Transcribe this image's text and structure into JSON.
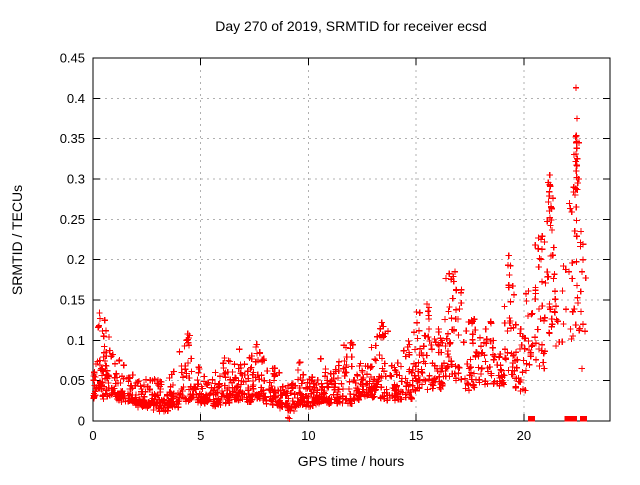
{
  "chart_data": {
    "type": "scatter",
    "title": "Day 270 of 2019, SRMTID for receiver ecsd",
    "xlabel": "GPS time / hours",
    "ylabel": "SRMTID / TECUs",
    "xlim": [
      0,
      24
    ],
    "ylim": [
      0,
      0.45
    ],
    "xticks": [
      0,
      5,
      10,
      15,
      20
    ],
    "xtick_labels": [
      "0",
      "5",
      "10",
      "15",
      "20"
    ],
    "yticks": [
      0,
      0.05,
      0.1,
      0.15,
      0.2,
      0.25,
      0.3,
      0.35,
      0.4,
      0.45
    ],
    "ytick_labels": [
      "0",
      "0.05",
      "0.1",
      "0.15",
      "0.2",
      "0.25",
      "0.3",
      "0.35",
      "0.4",
      "0.45"
    ],
    "grid": true,
    "legend": "none",
    "marker": "plus-cross",
    "marker_color": "#ff0000",
    "grid_color": "#b0b0b0",
    "axis_color": "#000000",
    "background": "#ffffff",
    "series_name": "SRMTID",
    "bands": [
      [
        0.0,
        0.25,
        18,
        0.03,
        0.08,
        2.2
      ],
      [
        0.2,
        0.8,
        26,
        0.04,
        0.135,
        1.6
      ],
      [
        0.25,
        1.0,
        30,
        0.03,
        0.08,
        2.2
      ],
      [
        1.0,
        1.5,
        34,
        0.028,
        0.075,
        2.2
      ],
      [
        1.5,
        2.0,
        34,
        0.025,
        0.065,
        2.2
      ],
      [
        2.0,
        2.5,
        34,
        0.02,
        0.06,
        2.2
      ],
      [
        2.5,
        3.0,
        34,
        0.018,
        0.055,
        2.2
      ],
      [
        3.0,
        3.5,
        34,
        0.015,
        0.052,
        2.2
      ],
      [
        3.5,
        4.0,
        34,
        0.02,
        0.06,
        2.2
      ],
      [
        4.0,
        4.5,
        30,
        0.025,
        0.105,
        2.0
      ],
      [
        4.5,
        5.0,
        30,
        0.028,
        0.085,
        2.2
      ],
      [
        5.0,
        5.5,
        34,
        0.025,
        0.06,
        2.2
      ],
      [
        5.5,
        6.0,
        34,
        0.022,
        0.065,
        2.2
      ],
      [
        6.0,
        6.5,
        34,
        0.025,
        0.08,
        2.2
      ],
      [
        6.5,
        7.0,
        34,
        0.028,
        0.09,
        2.2
      ],
      [
        7.0,
        7.5,
        34,
        0.025,
        0.09,
        2.2
      ],
      [
        7.5,
        8.0,
        34,
        0.028,
        0.095,
        2.2
      ],
      [
        8.0,
        8.5,
        34,
        0.025,
        0.07,
        2.2
      ],
      [
        8.5,
        9.0,
        34,
        0.02,
        0.06,
        2.2
      ],
      [
        9.0,
        9.5,
        34,
        0.015,
        0.055,
        2.2
      ],
      [
        9.5,
        10.0,
        34,
        0.02,
        0.075,
        2.2
      ],
      [
        10.0,
        10.5,
        34,
        0.02,
        0.06,
        2.2
      ],
      [
        10.5,
        11.0,
        34,
        0.025,
        0.08,
        2.2
      ],
      [
        11.0,
        11.5,
        34,
        0.025,
        0.07,
        2.2
      ],
      [
        11.5,
        12.2,
        38,
        0.025,
        0.095,
        2.2
      ],
      [
        12.2,
        12.7,
        34,
        0.03,
        0.075,
        2.2
      ],
      [
        12.7,
        13.1,
        28,
        0.03,
        0.09,
        2.0
      ],
      [
        13.1,
        13.7,
        38,
        0.03,
        0.12,
        1.8
      ],
      [
        13.7,
        14.3,
        34,
        0.028,
        0.08,
        2.2
      ],
      [
        14.3,
        15.0,
        38,
        0.03,
        0.11,
        1.7
      ],
      [
        15.0,
        15.7,
        40,
        0.04,
        0.145,
        1.5
      ],
      [
        15.7,
        16.3,
        38,
        0.04,
        0.12,
        1.5
      ],
      [
        16.3,
        17.2,
        45,
        0.05,
        0.185,
        1.4
      ],
      [
        17.2,
        18.0,
        40,
        0.04,
        0.14,
        1.5
      ],
      [
        18.0,
        18.6,
        28,
        0.045,
        0.13,
        1.6
      ],
      [
        18.6,
        19.1,
        24,
        0.045,
        0.095,
        1.8
      ],
      [
        19.1,
        19.6,
        30,
        0.05,
        0.2,
        1.3
      ],
      [
        19.6,
        20.1,
        24,
        0.04,
        0.12,
        1.6
      ],
      [
        20.1,
        20.45,
        16,
        0.05,
        0.16,
        1.4
      ],
      [
        20.5,
        21.0,
        30,
        0.07,
        0.23,
        1.3
      ],
      [
        21.0,
        21.45,
        32,
        0.1,
        0.3,
        1.2
      ],
      [
        21.45,
        22.1,
        13,
        0.08,
        0.22,
        1.5
      ],
      [
        22.1,
        22.6,
        32,
        0.1,
        0.37,
        1.1
      ],
      [
        22.6,
        22.9,
        9,
        0.06,
        0.24,
        1.5
      ]
    ],
    "peaks": [
      [
        0.3,
        0.134
      ],
      [
        0.33,
        0.127
      ],
      [
        0.55,
        0.125
      ],
      [
        0.28,
        0.118
      ],
      [
        0.6,
        0.112
      ],
      [
        0.5,
        0.105
      ],
      [
        4.4,
        0.108
      ],
      [
        4.35,
        0.1
      ],
      [
        4.45,
        0.094
      ],
      [
        7.6,
        0.095
      ],
      [
        12.0,
        0.097
      ],
      [
        11.95,
        0.09
      ],
      [
        13.4,
        0.122
      ],
      [
        13.35,
        0.114
      ],
      [
        13.45,
        0.107
      ],
      [
        14.9,
        0.11
      ],
      [
        15.5,
        0.145
      ],
      [
        15.55,
        0.136
      ],
      [
        16.8,
        0.185
      ],
      [
        16.75,
        0.173
      ],
      [
        16.85,
        0.163
      ],
      [
        16.7,
        0.152
      ],
      [
        19.3,
        0.205
      ],
      [
        19.27,
        0.193
      ],
      [
        19.33,
        0.181
      ],
      [
        20.8,
        0.225
      ],
      [
        20.85,
        0.213
      ],
      [
        21.2,
        0.305
      ],
      [
        21.23,
        0.291
      ],
      [
        21.18,
        0.279
      ],
      [
        21.26,
        0.266
      ],
      [
        21.21,
        0.252
      ],
      [
        22.42,
        0.413
      ],
      [
        22.47,
        0.375
      ],
      [
        22.4,
        0.352
      ],
      [
        22.44,
        0.345
      ],
      [
        22.46,
        0.338
      ],
      [
        22.42,
        0.331
      ],
      [
        22.48,
        0.325
      ],
      [
        22.45,
        0.317
      ],
      [
        22.43,
        0.31
      ],
      [
        22.46,
        0.302
      ],
      [
        22.5,
        0.295
      ],
      [
        22.44,
        0.287
      ],
      [
        22.55,
        0.3
      ],
      [
        22.65,
        0.235
      ],
      [
        22.7,
        0.185
      ],
      [
        22.75,
        0.12
      ],
      [
        9.05,
        0.004
      ],
      [
        9.12,
        0.003
      ]
    ],
    "zero_clusters_x": [
      20.35,
      22.05,
      22.3,
      22.76
    ]
  }
}
